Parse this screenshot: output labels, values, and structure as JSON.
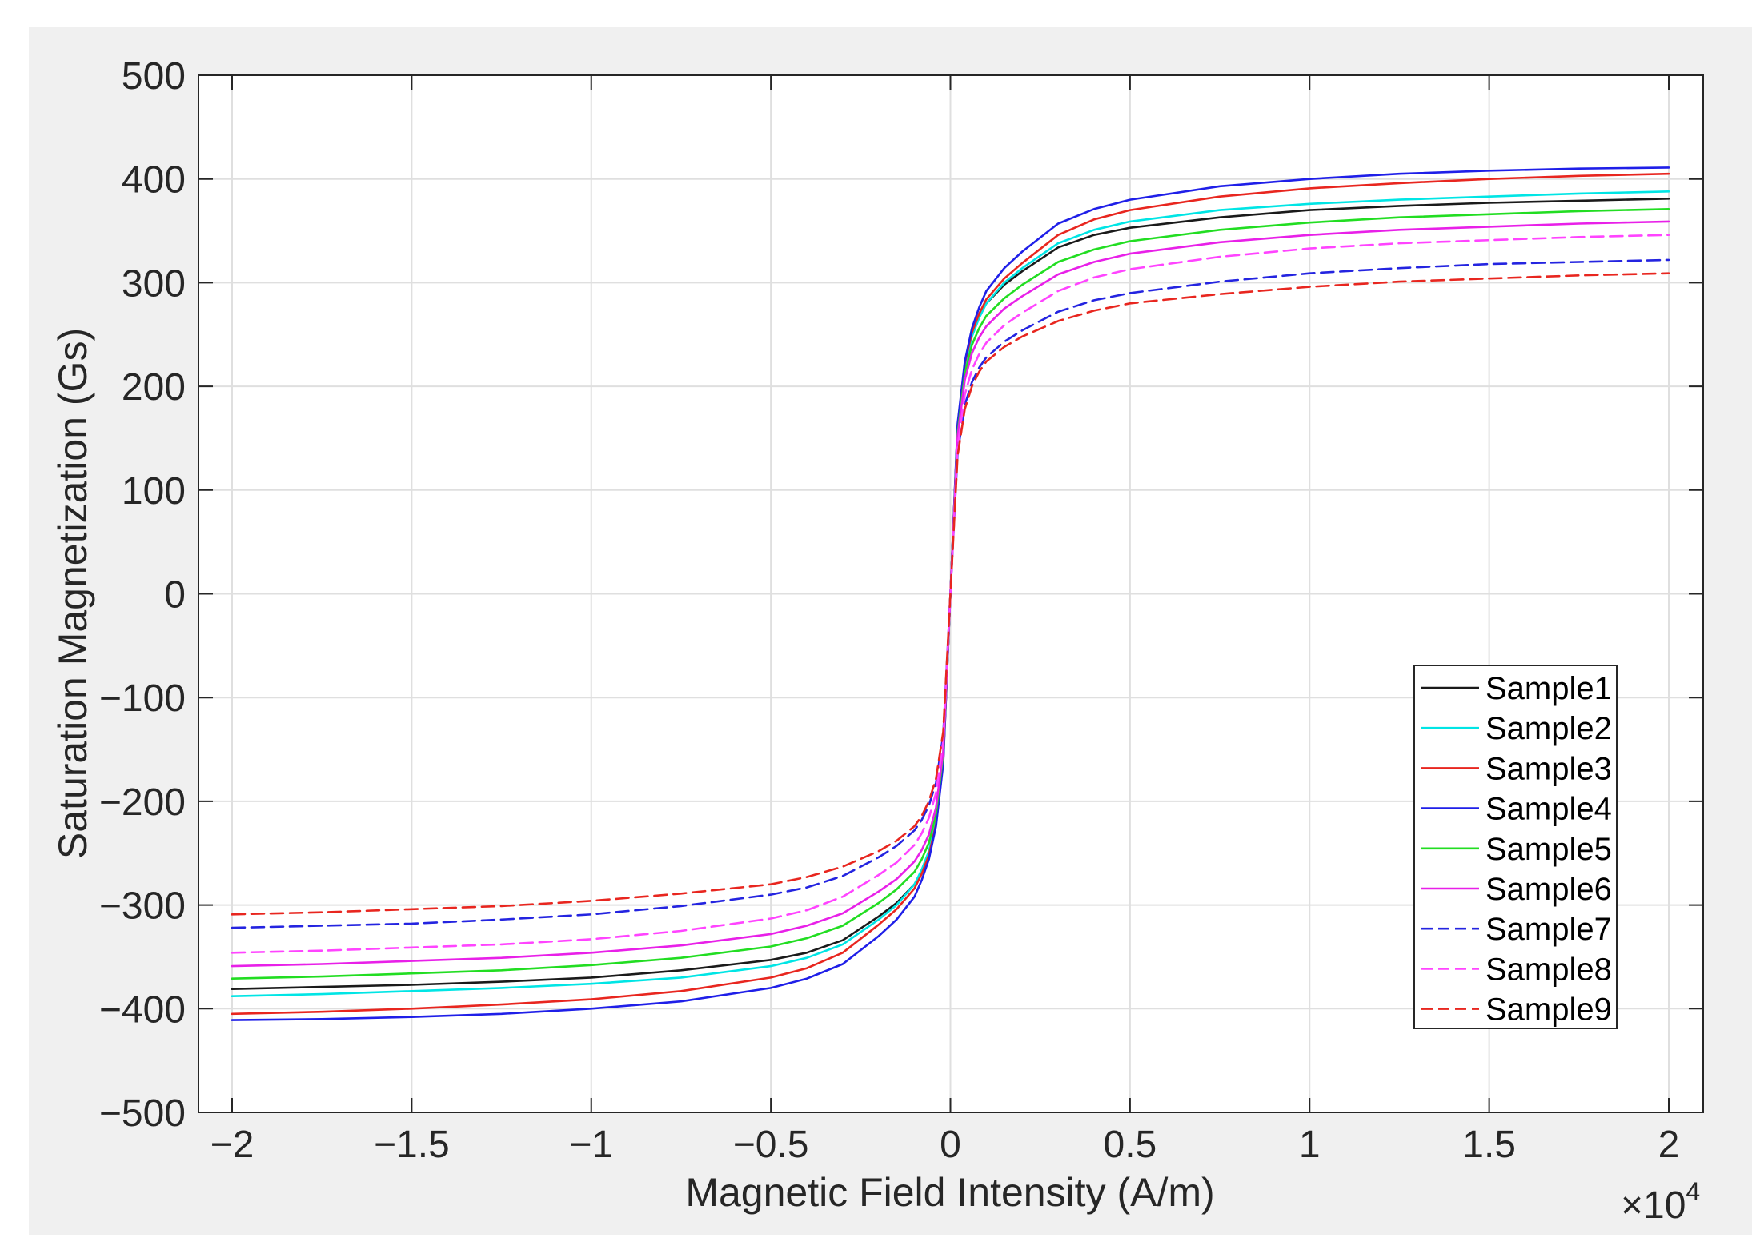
{
  "chart_data": {
    "type": "line",
    "title": "",
    "xlabel": "Magnetic Field Intensity (A/m)",
    "ylabel": "Saturation Magnetization (Gs)",
    "x_exponent_label": "×10",
    "x_exponent_power": "4",
    "xlim": [
      -2,
      2
    ],
    "ylim": [
      -500,
      500
    ],
    "x_scale_factor": 10000,
    "xticks": [
      -2,
      -1.5,
      -1,
      -0.5,
      0,
      0.5,
      1,
      1.5,
      2
    ],
    "xtick_labels": [
      "−2",
      "−1.5",
      "−1",
      "−0.5",
      "0",
      "0.5",
      "1",
      "1.5",
      "2"
    ],
    "yticks": [
      -500,
      -400,
      -300,
      -200,
      -100,
      0,
      100,
      200,
      300,
      400,
      500
    ],
    "ytick_labels": [
      "−500",
      "−400",
      "−300",
      "−200",
      "−100",
      "0",
      "100",
      "200",
      "300",
      "400",
      "500"
    ],
    "grid": true,
    "legend_position": "bottom-right",
    "x": [
      -2,
      -1.75,
      -1.5,
      -1.25,
      -1,
      -0.75,
      -0.5,
      -0.4,
      -0.3,
      -0.2,
      -0.15,
      -0.1,
      -0.08,
      -0.06,
      -0.04,
      -0.02,
      0,
      0.02,
      0.04,
      0.06,
      0.08,
      0.1,
      0.15,
      0.2,
      0.3,
      0.4,
      0.5,
      0.75,
      1,
      1.25,
      1.5,
      1.75,
      2
    ],
    "series": [
      {
        "name": "Sample1",
        "color": "#1a1a1a",
        "dash": "solid",
        "values": [
          -381,
          -379,
          -377,
          -374,
          -370,
          -363,
          -353,
          -346,
          -334,
          -311,
          -298,
          -280,
          -268,
          -250,
          -220,
          -160,
          0,
          160,
          220,
          250,
          268,
          280,
          298,
          311,
          334,
          346,
          353,
          363,
          370,
          374,
          377,
          379,
          381
        ]
      },
      {
        "name": "Sample2",
        "color": "#00e5e5",
        "dash": "solid",
        "values": [
          -388,
          -386,
          -383,
          -380,
          -376,
          -370,
          -359,
          -351,
          -338,
          -314,
          -300,
          -280,
          -266,
          -248,
          -218,
          -158,
          0,
          158,
          218,
          248,
          266,
          280,
          300,
          314,
          338,
          351,
          359,
          370,
          376,
          380,
          383,
          386,
          388
        ]
      },
      {
        "name": "Sample3",
        "color": "#e8261f",
        "dash": "solid",
        "values": [
          -405,
          -403,
          -400,
          -396,
          -391,
          -383,
          -370,
          -361,
          -346,
          -319,
          -304,
          -284,
          -270,
          -252,
          -222,
          -162,
          0,
          162,
          222,
          252,
          270,
          284,
          304,
          319,
          346,
          361,
          370,
          383,
          391,
          396,
          400,
          403,
          405
        ]
      },
      {
        "name": "Sample4",
        "color": "#1f1fe8",
        "dash": "solid",
        "values": [
          -411,
          -410,
          -408,
          -405,
          -400,
          -393,
          -380,
          -371,
          -357,
          -330,
          -314,
          -292,
          -276,
          -256,
          -224,
          -164,
          0,
          164,
          224,
          256,
          276,
          292,
          314,
          330,
          357,
          371,
          380,
          393,
          400,
          405,
          408,
          410,
          411
        ]
      },
      {
        "name": "Sample5",
        "color": "#22dd22",
        "dash": "solid",
        "values": [
          -371,
          -369,
          -366,
          -363,
          -358,
          -351,
          -340,
          -332,
          -320,
          -298,
          -285,
          -268,
          -256,
          -240,
          -212,
          -155,
          0,
          155,
          212,
          240,
          256,
          268,
          285,
          298,
          320,
          332,
          340,
          351,
          358,
          363,
          366,
          369,
          371
        ]
      },
      {
        "name": "Sample6",
        "color": "#e820e8",
        "dash": "solid",
        "values": [
          -359,
          -357,
          -354,
          -351,
          -346,
          -339,
          -328,
          -320,
          -308,
          -287,
          -275,
          -258,
          -247,
          -232,
          -206,
          -152,
          0,
          152,
          206,
          232,
          247,
          258,
          275,
          287,
          308,
          320,
          328,
          339,
          346,
          351,
          354,
          357,
          359
        ]
      },
      {
        "name": "Sample7",
        "color": "#2424e0",
        "dash": "dashed",
        "values": [
          -322,
          -320,
          -318,
          -314,
          -309,
          -301,
          -290,
          -283,
          -272,
          -254,
          -243,
          -228,
          -218,
          -204,
          -182,
          -136,
          0,
          136,
          182,
          204,
          218,
          228,
          243,
          254,
          272,
          283,
          290,
          301,
          309,
          314,
          318,
          320,
          322
        ]
      },
      {
        "name": "Sample8",
        "color": "#ff44ff",
        "dash": "dashed",
        "values": [
          -346,
          -344,
          -341,
          -338,
          -333,
          -325,
          -313,
          -305,
          -292,
          -271,
          -259,
          -242,
          -231,
          -216,
          -192,
          -142,
          0,
          142,
          192,
          216,
          231,
          242,
          259,
          271,
          292,
          305,
          313,
          325,
          333,
          338,
          341,
          344,
          346
        ]
      },
      {
        "name": "Sample9",
        "color": "#e8261f",
        "dash": "dashed",
        "values": [
          -309,
          -307,
          -304,
          -301,
          -296,
          -289,
          -280,
          -273,
          -263,
          -248,
          -238,
          -224,
          -214,
          -200,
          -178,
          -133,
          0,
          133,
          178,
          200,
          214,
          224,
          238,
          248,
          263,
          273,
          280,
          289,
          296,
          301,
          304,
          307,
          309
        ]
      }
    ]
  }
}
